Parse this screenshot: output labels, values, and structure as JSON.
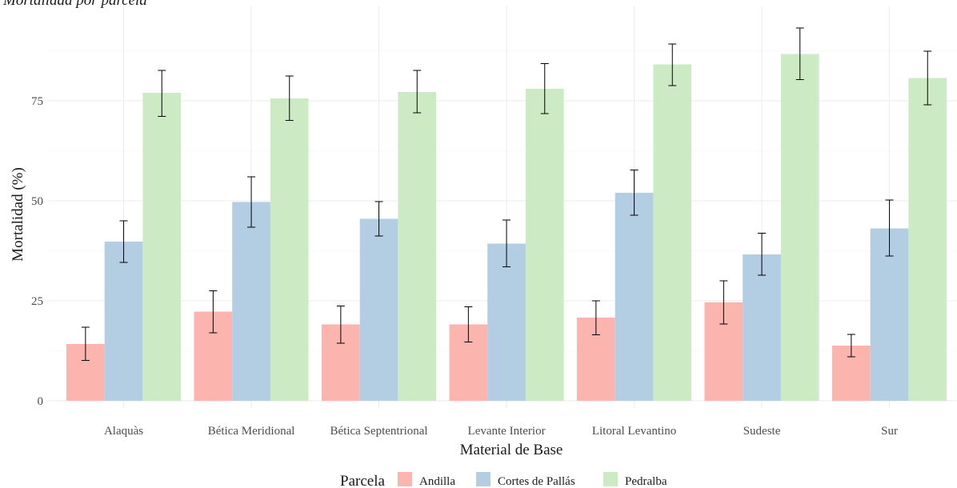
{
  "chart_data": {
    "type": "bar",
    "title": "Mortalidad por parcela",
    "xlabel": "Material de Base",
    "ylabel": "Mortalidad (%)",
    "ylim": [
      0,
      95
    ],
    "yticks": [
      0,
      25,
      50,
      75
    ],
    "grid": true,
    "legend_title": "Parcela",
    "legend_position": "bottom",
    "categories": [
      "Alaquàs",
      "Bética Meridional",
      "Bética Septentrional",
      "Levante Interior",
      "Litoral Levantino",
      "Sudeste",
      "Sur"
    ],
    "series": [
      {
        "name": "Andilla",
        "color": "#fbb4ae",
        "values": [
          14.2,
          22.3,
          19.1,
          19.1,
          20.8,
          24.6,
          13.8
        ],
        "err_low": [
          10.1,
          17.0,
          14.4,
          14.7,
          16.5,
          19.2,
          11.0
        ],
        "err_high": [
          18.4,
          27.5,
          23.7,
          23.5,
          25.0,
          30.0,
          16.6
        ]
      },
      {
        "name": "Cortes de Pallás",
        "color": "#b3cde3",
        "values": [
          39.8,
          49.7,
          45.5,
          39.3,
          52.0,
          36.6,
          43.1
        ],
        "err_low": [
          34.6,
          43.4,
          41.2,
          33.5,
          46.4,
          31.4,
          36.2
        ],
        "err_high": [
          45.0,
          56.0,
          49.8,
          45.2,
          57.7,
          41.9,
          50.2
        ]
      },
      {
        "name": "Pedralba",
        "color": "#ccebc5",
        "values": [
          77.0,
          75.6,
          77.2,
          78.0,
          84.1,
          86.7,
          80.7
        ],
        "err_low": [
          71.1,
          70.1,
          72.0,
          71.8,
          78.8,
          80.3,
          74.0
        ],
        "err_high": [
          82.6,
          81.2,
          82.6,
          84.3,
          89.2,
          93.2,
          87.4
        ]
      }
    ]
  }
}
